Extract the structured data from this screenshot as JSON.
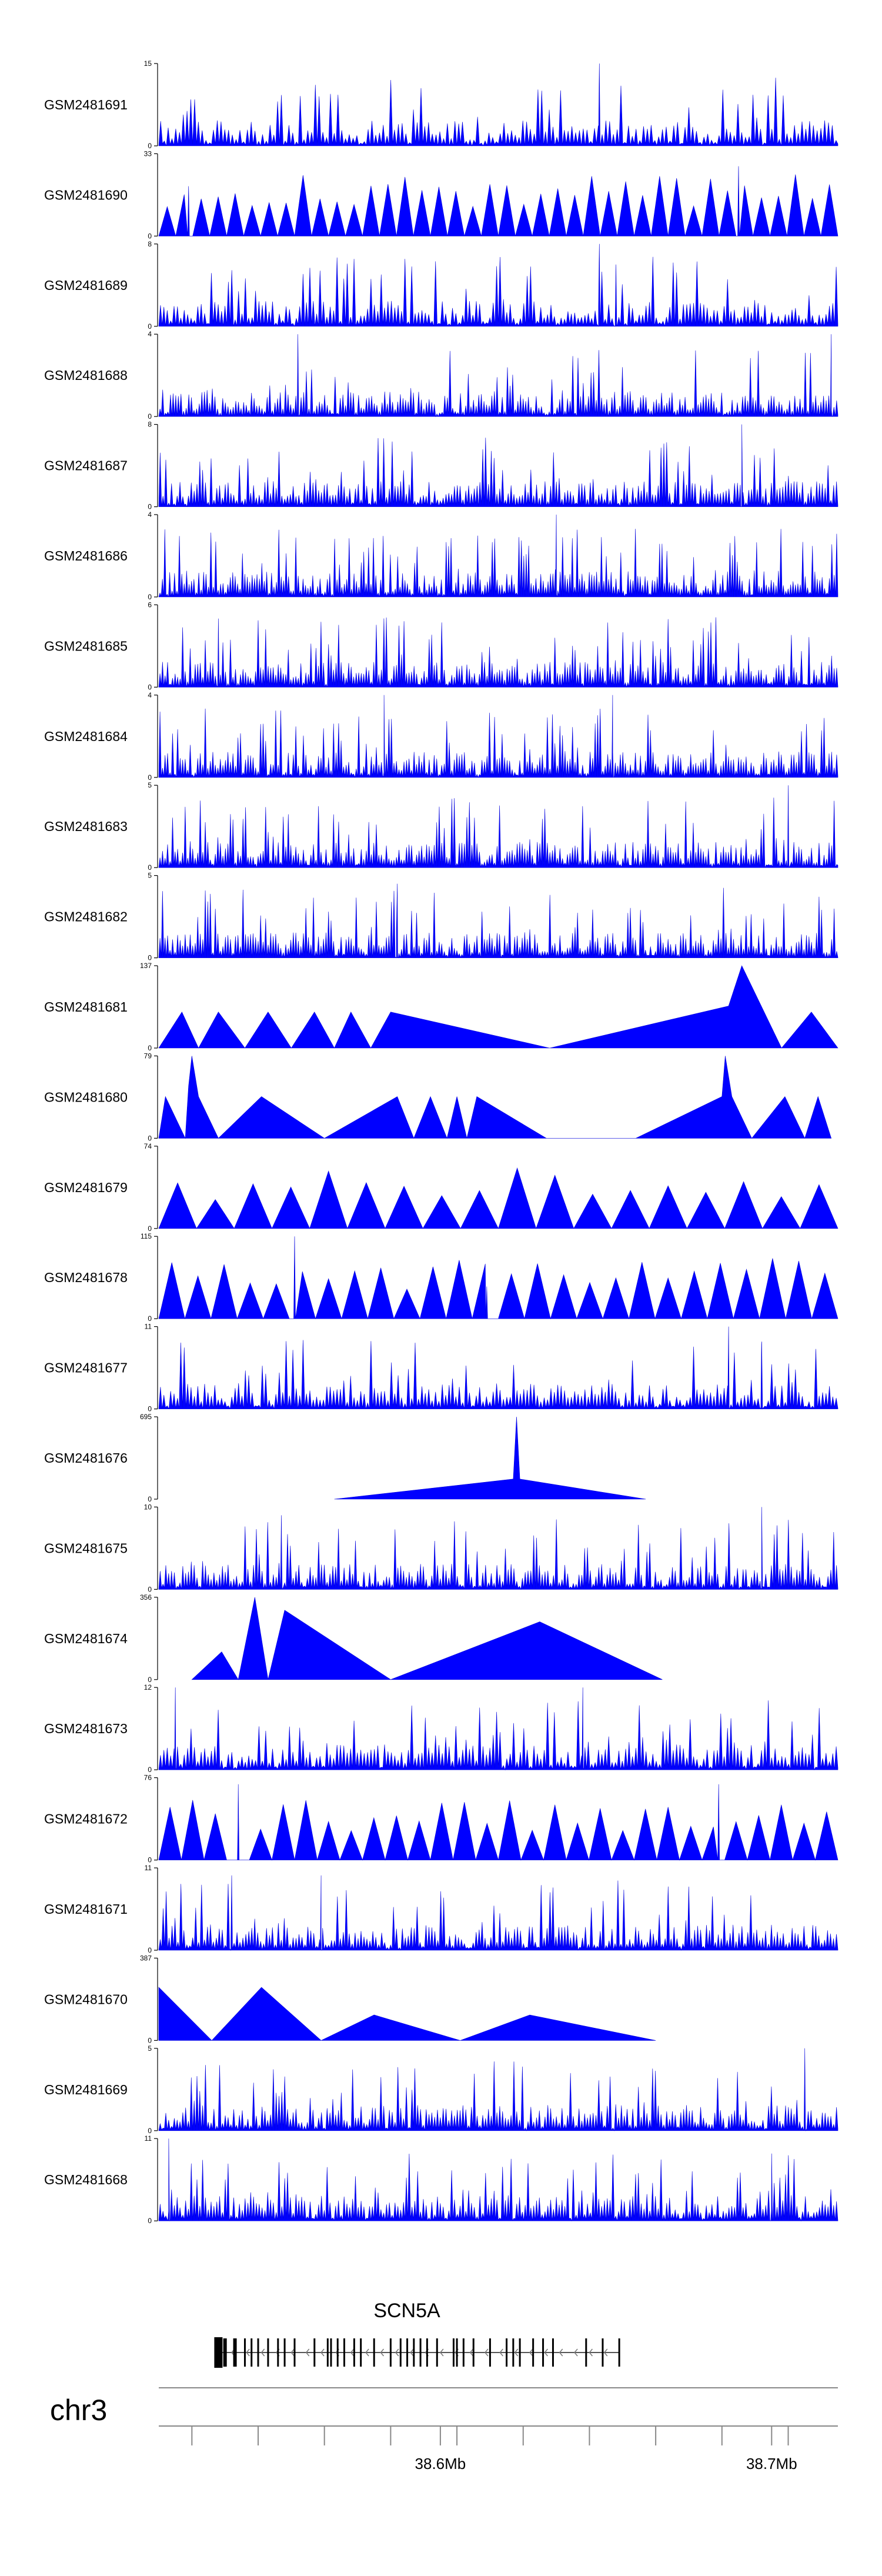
{
  "chart_data": {
    "type": "area",
    "genome_axis": {
      "chromosome": "chr3",
      "xlim": [
        38.515,
        38.72
      ],
      "major_ticks": [
        {
          "value": 38.6,
          "label": "38.6Mb"
        },
        {
          "value": 38.7,
          "label": "38.7Mb"
        }
      ],
      "minor_ticks": [
        38.525,
        38.545,
        38.565,
        38.585,
        38.605,
        38.625,
        38.645,
        38.665,
        38.685,
        38.705
      ]
    },
    "gene": {
      "name": "SCN5A",
      "start": 38.533,
      "end": 38.654,
      "strand": "-",
      "exons": [
        38.533,
        38.535,
        38.538,
        38.541,
        38.543,
        38.545,
        38.548,
        38.551,
        38.553,
        38.556,
        38.562,
        38.566,
        38.567,
        38.569,
        38.571,
        38.574,
        38.576,
        38.58,
        38.585,
        38.588,
        38.59,
        38.592,
        38.594,
        38.596,
        38.599,
        38.604,
        38.605,
        38.607,
        38.61,
        38.615,
        38.62,
        38.622,
        38.624,
        38.628,
        38.631,
        38.634,
        38.644,
        38.649,
        38.654
      ]
    },
    "series": [
      {
        "name": "GSM2481691",
        "ymax": 15,
        "style": "dense",
        "density": 180,
        "peaks": [
          [
            38.648,
            15
          ]
        ],
        "seed": 1
      },
      {
        "name": "GSM2481690",
        "ymax": 33,
        "style": "tri",
        "density": 40,
        "peaks": [
          [
            38.524,
            20
          ],
          [
            38.69,
            28
          ]
        ],
        "seed": 2
      },
      {
        "name": "GSM2481689",
        "ymax": 8,
        "style": "dense",
        "density": 200,
        "peaks": [
          [
            38.648,
            8
          ],
          [
            38.653,
            6
          ]
        ],
        "seed": 3
      },
      {
        "name": "GSM2481688",
        "ymax": 4,
        "style": "dense",
        "density": 260,
        "peaks": [
          [
            38.557,
            4
          ],
          [
            38.718,
            4
          ]
        ],
        "seed": 4
      },
      {
        "name": "GSM2481687",
        "ymax": 8,
        "style": "dense",
        "density": 240,
        "peaks": [
          [
            38.691,
            8
          ]
        ],
        "seed": 5
      },
      {
        "name": "GSM2481686",
        "ymax": 4,
        "style": "dense",
        "density": 280,
        "peaks": [
          [
            38.635,
            4
          ]
        ],
        "seed": 6
      },
      {
        "name": "GSM2481685",
        "ymax": 6,
        "style": "dense",
        "density": 270,
        "peaks": [
          [
            38.533,
            5
          ]
        ],
        "seed": 7
      },
      {
        "name": "GSM2481684",
        "ymax": 4,
        "style": "dense",
        "density": 270,
        "peaks": [
          [
            38.583,
            4
          ],
          [
            38.652,
            4
          ]
        ],
        "seed": 8
      },
      {
        "name": "GSM2481683",
        "ymax": 5,
        "style": "dense",
        "density": 270,
        "peaks": [
          [
            38.705,
            5
          ]
        ],
        "seed": 9
      },
      {
        "name": "GSM2481682",
        "ymax": 5,
        "style": "dense",
        "density": 270,
        "peaks": [
          [
            38.587,
            4.5
          ]
        ],
        "seed": 10
      },
      {
        "name": "GSM2481681",
        "ymax": 137,
        "style": "tri",
        "density": 14,
        "points": [
          [
            38.515,
            0
          ],
          [
            38.522,
            60
          ],
          [
            38.527,
            0
          ],
          [
            38.533,
            60
          ],
          [
            38.541,
            0
          ],
          [
            38.548,
            60
          ],
          [
            38.555,
            0
          ],
          [
            38.562,
            60
          ],
          [
            38.568,
            0
          ],
          [
            38.573,
            60
          ],
          [
            38.579,
            0
          ],
          [
            38.585,
            60
          ],
          [
            38.633,
            0
          ],
          [
            38.687,
            70
          ],
          [
            38.691,
            137
          ],
          [
            38.703,
            0
          ],
          [
            38.712,
            60
          ],
          [
            38.72,
            0
          ]
        ],
        "seed": 11
      },
      {
        "name": "GSM2481680",
        "ymax": 79,
        "style": "tri",
        "density": 14,
        "points": [
          [
            38.515,
            0
          ],
          [
            38.517,
            40
          ],
          [
            38.523,
            0
          ],
          [
            38.524,
            50
          ],
          [
            38.525,
            79
          ],
          [
            38.527,
            40
          ],
          [
            38.533,
            0
          ],
          [
            38.546,
            40
          ],
          [
            38.565,
            0
          ],
          [
            38.587,
            40
          ],
          [
            38.592,
            0
          ],
          [
            38.597,
            40
          ],
          [
            38.602,
            0
          ],
          [
            38.605,
            40
          ],
          [
            38.608,
            0
          ],
          [
            38.611,
            40
          ],
          [
            38.632,
            0
          ],
          [
            38.659,
            0
          ],
          [
            38.685,
            40
          ],
          [
            38.686,
            79
          ],
          [
            38.688,
            40
          ],
          [
            38.694,
            0
          ],
          [
            38.704,
            40
          ],
          [
            38.71,
            0
          ],
          [
            38.714,
            40
          ],
          [
            38.718,
            0
          ]
        ],
        "seed": 12
      },
      {
        "name": "GSM2481679",
        "ymax": 74,
        "style": "tri",
        "density": 18,
        "seed": 13
      },
      {
        "name": "GSM2481678",
        "ymax": 115,
        "style": "tri",
        "density": 26,
        "peaks": [
          [
            38.556,
            115
          ],
          [
            38.614,
            45
          ]
        ],
        "seed": 14
      },
      {
        "name": "GSM2481677",
        "ymax": 11,
        "style": "dense",
        "density": 200,
        "peaks": [
          [
            38.687,
            11
          ],
          [
            38.697,
            9
          ]
        ],
        "seed": 15
      },
      {
        "name": "GSM2481676",
        "ymax": 695,
        "style": "tri",
        "density": 1,
        "points": [
          [
            38.568,
            0
          ],
          [
            38.622,
            170
          ],
          [
            38.623,
            695
          ],
          [
            38.624,
            170
          ],
          [
            38.662,
            0
          ]
        ],
        "seed": 16
      },
      {
        "name": "GSM2481675",
        "ymax": 10,
        "style": "dense",
        "density": 240,
        "peaks": [
          [
            38.697,
            10
          ],
          [
            38.552,
            9
          ]
        ],
        "seed": 17
      },
      {
        "name": "GSM2481674",
        "ymax": 356,
        "style": "tri",
        "density": 6,
        "points": [
          [
            38.525,
            0
          ],
          [
            38.534,
            120
          ],
          [
            38.539,
            0
          ],
          [
            38.544,
            356
          ],
          [
            38.548,
            0
          ],
          [
            38.553,
            300
          ],
          [
            38.585,
            0
          ],
          [
            38.63,
            250
          ],
          [
            38.667,
            0
          ]
        ],
        "seed": 18
      },
      {
        "name": "GSM2481673",
        "ymax": 12,
        "style": "dense",
        "density": 200,
        "peaks": [
          [
            38.52,
            12
          ],
          [
            38.643,
            12
          ]
        ],
        "seed": 19
      },
      {
        "name": "GSM2481672",
        "ymax": 76,
        "style": "tri",
        "density": 30,
        "peaks": [
          [
            38.539,
            70
          ],
          [
            38.684,
            70
          ]
        ],
        "seed": 20
      },
      {
        "name": "GSM2481671",
        "ymax": 11,
        "style": "dense",
        "density": 230,
        "peaks": [
          [
            38.537,
            10
          ],
          [
            38.564,
            10
          ]
        ],
        "seed": 21
      },
      {
        "name": "GSM2481670",
        "ymax": 387,
        "style": "tri",
        "density": 6,
        "points": [
          [
            38.515,
            0
          ],
          [
            38.515,
            250
          ],
          [
            38.531,
            0
          ],
          [
            38.546,
            250
          ],
          [
            38.564,
            0
          ],
          [
            38.58,
            120
          ],
          [
            38.606,
            0
          ],
          [
            38.627,
            120
          ],
          [
            38.665,
            0
          ]
        ],
        "seed": 22
      },
      {
        "name": "GSM2481669",
        "ymax": 5,
        "style": "dense",
        "density": 240,
        "peaks": [
          [
            38.71,
            5
          ]
        ],
        "seed": 23
      },
      {
        "name": "GSM2481668",
        "ymax": 11,
        "style": "dense",
        "density": 240,
        "peaks": [
          [
            38.518,
            11
          ],
          [
            38.7,
            9
          ]
        ],
        "seed": 24
      }
    ]
  }
}
